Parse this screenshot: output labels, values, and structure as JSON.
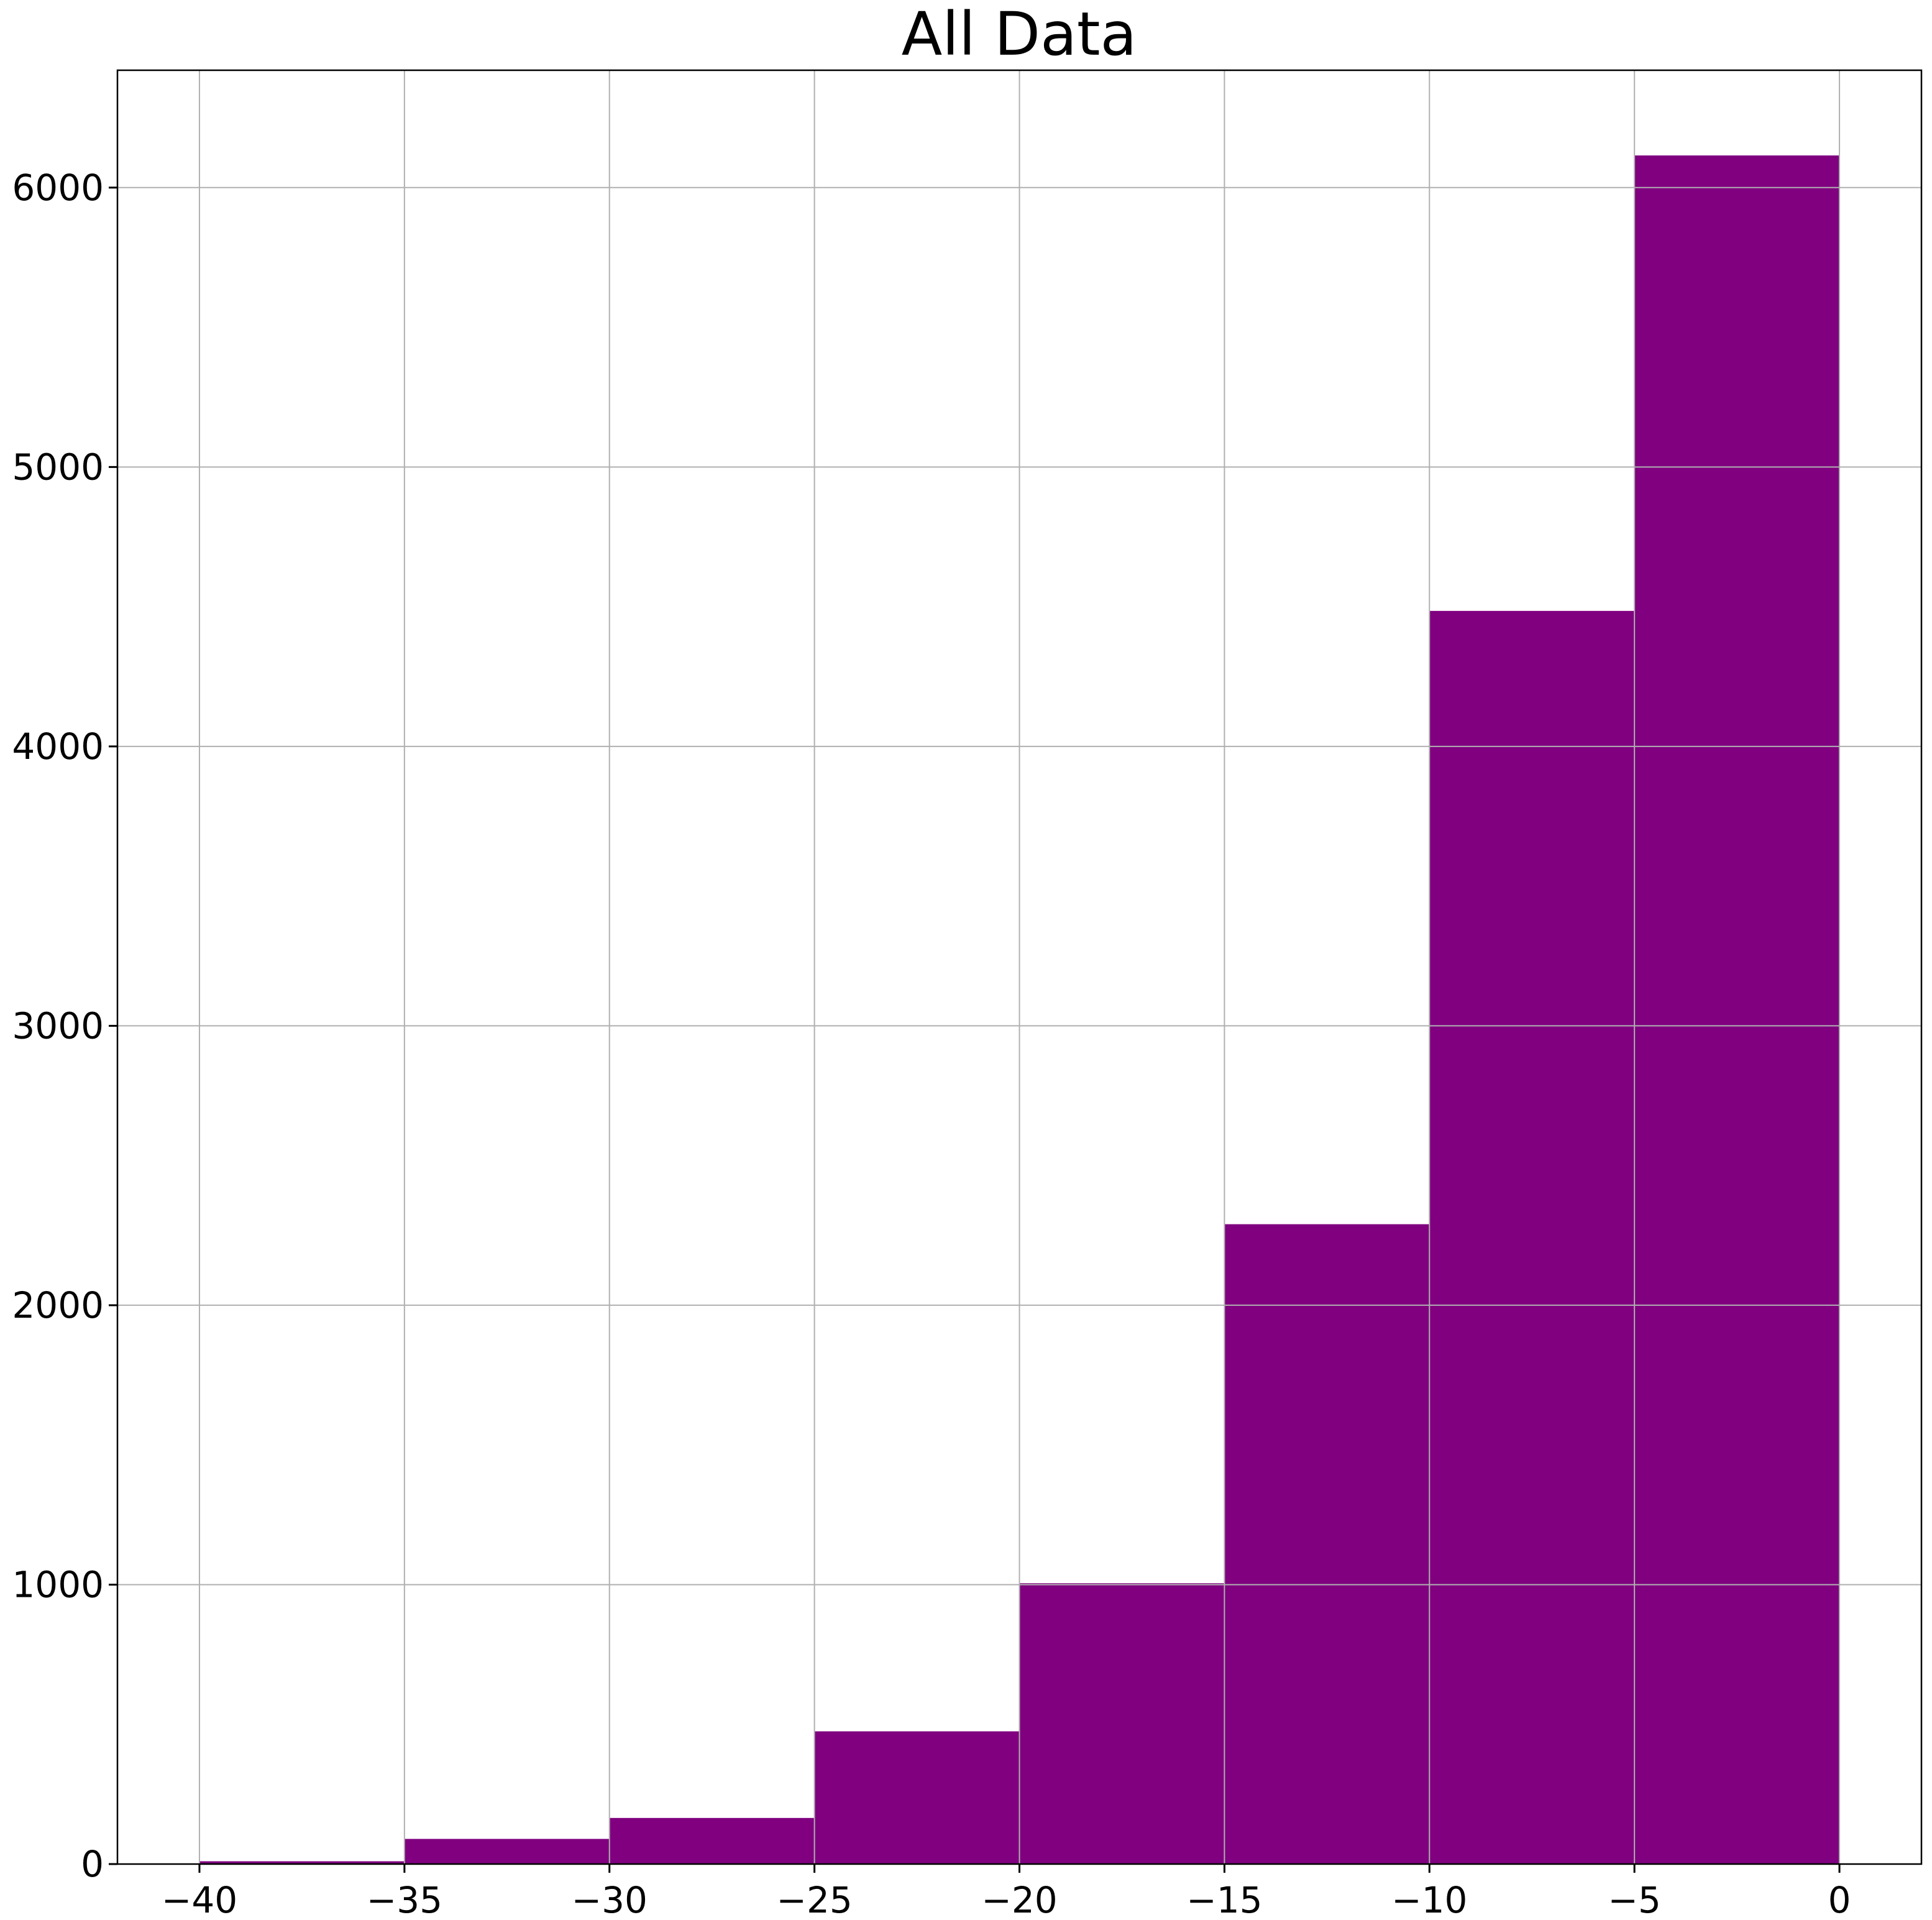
{
  "chart_data": {
    "type": "bar",
    "title": "All Data",
    "xlabel": "",
    "ylabel": "",
    "bin_edges": [
      -40,
      -35,
      -30,
      -25,
      -20,
      -15,
      -10,
      -5,
      0
    ],
    "values": [
      10,
      90,
      165,
      475,
      1005,
      2290,
      4485,
      6115
    ],
    "xlim": [
      -42,
      2
    ],
    "ylim": [
      0,
      6420
    ],
    "x_ticks": [
      -40,
      -35,
      -30,
      -25,
      -20,
      -15,
      -10,
      -5,
      0
    ],
    "x_tick_labels": [
      "−40",
      "−35",
      "−30",
      "−25",
      "−20",
      "−15",
      "−10",
      "−5",
      "0"
    ],
    "y_ticks": [
      0,
      1000,
      2000,
      3000,
      4000,
      5000,
      6000
    ],
    "y_tick_labels": [
      "0",
      "1000",
      "2000",
      "3000",
      "4000",
      "5000",
      "6000"
    ],
    "grid": true,
    "bar_color": "#800080"
  }
}
